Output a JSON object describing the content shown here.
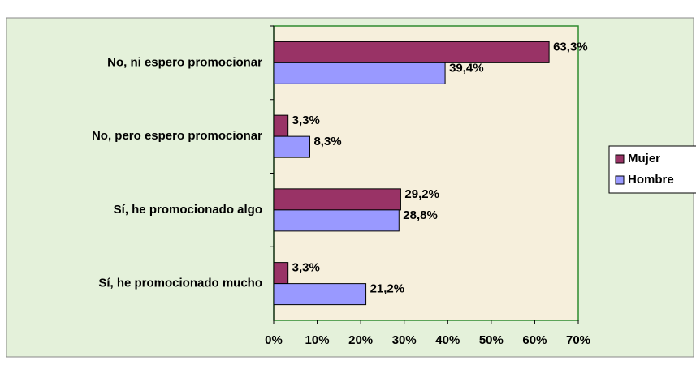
{
  "chart_data": {
    "type": "hbar",
    "categories": [
      "No, ni espero promocionar",
      "No, pero espero promocionar",
      "Sí, he promocionado algo",
      "Sí, he promocionado mucho"
    ],
    "series": [
      {
        "name": "Mujer",
        "color": "#993366",
        "values": [
          63.3,
          3.3,
          29.2,
          3.3
        ],
        "value_labels": [
          "63,3%",
          "3,3%",
          "29,2%",
          "3,3%"
        ]
      },
      {
        "name": "Hombre",
        "color": "#9999ff",
        "values": [
          39.4,
          8.3,
          28.8,
          21.2
        ],
        "value_labels": [
          "39,4%",
          "8,3%",
          "28,8%",
          "21,2%"
        ]
      }
    ],
    "xlim": [
      0,
      70
    ],
    "xticks": [
      {
        "value": 0,
        "label": "0%"
      },
      {
        "value": 10,
        "label": "10%"
      },
      {
        "value": 20,
        "label": "20%"
      },
      {
        "value": 30,
        "label": "30%"
      },
      {
        "value": 40,
        "label": "40%"
      },
      {
        "value": 50,
        "label": "50%"
      },
      {
        "value": 60,
        "label": "60%"
      },
      {
        "value": 70,
        "label": "70%"
      }
    ],
    "legend": "right"
  }
}
